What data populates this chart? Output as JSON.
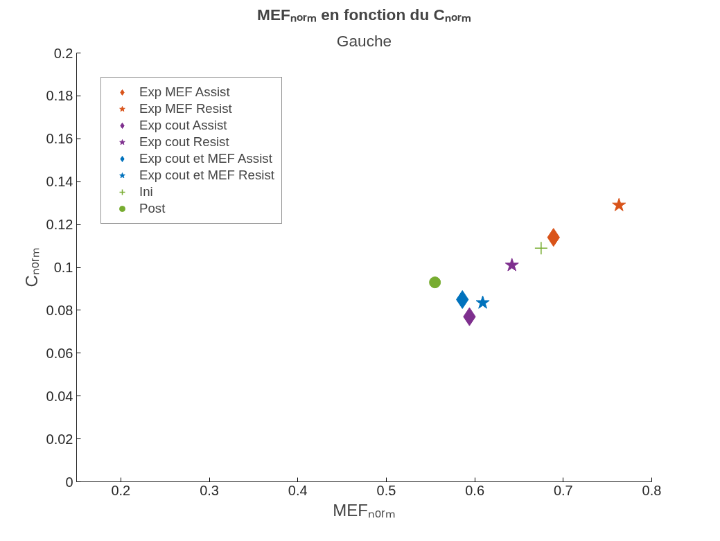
{
  "chart_data": {
    "type": "scatter",
    "title": "MEFₙₒᵣₘ en fonction du Cₙₒᵣₘ",
    "subtitle": "Gauche",
    "xlabel": "MEFₙₒᵣₘ",
    "ylabel": "Cₙₒᵣₘ",
    "xlim": [
      0.15,
      0.8
    ],
    "xticks": [
      0.2,
      0.3,
      0.4,
      0.5,
      0.6,
      0.7,
      0.8
    ],
    "ylim": [
      0,
      0.2
    ],
    "yticks": [
      0,
      0.02,
      0.04,
      0.06,
      0.08,
      0.1,
      0.12,
      0.14,
      0.16,
      0.18,
      0.2
    ],
    "grid": false,
    "legend": "top left",
    "series": [
      {
        "name": "Exp MEF Assist",
        "color": "#d95319",
        "marker": "diamond",
        "x": [
          0.689
        ],
        "values": [
          0.114
        ]
      },
      {
        "name": "Exp MEF Resist",
        "color": "#d95319",
        "marker": "star",
        "x": [
          0.763
        ],
        "values": [
          0.129
        ]
      },
      {
        "name": "Exp cout Assist",
        "color": "#7e2f8e",
        "marker": "diamond",
        "x": [
          0.594
        ],
        "values": [
          0.077
        ]
      },
      {
        "name": "Exp cout Resist",
        "color": "#7e2f8e",
        "marker": "star",
        "x": [
          0.642
        ],
        "values": [
          0.101
        ]
      },
      {
        "name": "Exp cout et MEF Assist",
        "color": "#0072bd",
        "marker": "diamond",
        "x": [
          0.586
        ],
        "values": [
          0.085
        ]
      },
      {
        "name": "Exp cout et MEF Resist",
        "color": "#0072bd",
        "marker": "star",
        "x": [
          0.609
        ],
        "values": [
          0.0835
        ]
      },
      {
        "name": "Ini",
        "color": "#77ac30",
        "marker": "cross",
        "x": [
          0.675
        ],
        "values": [
          0.109
        ]
      },
      {
        "name": "Post",
        "color": "#77ac30",
        "marker": "circle",
        "x": [
          0.555
        ],
        "values": [
          0.093
        ]
      }
    ]
  }
}
